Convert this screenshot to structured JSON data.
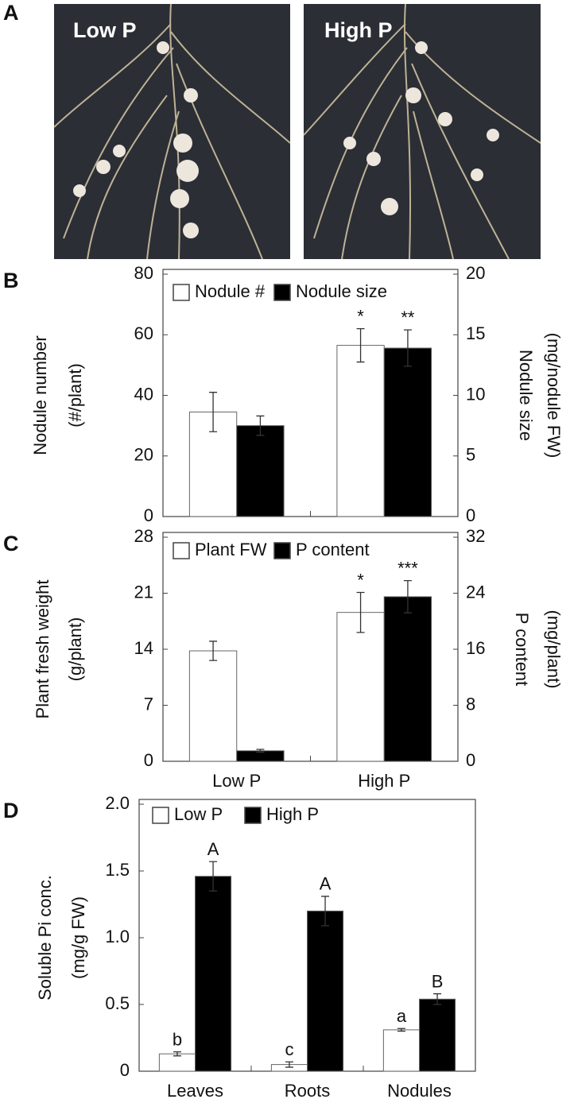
{
  "photo_panel": {
    "panel": "A",
    "labels": [
      "Low P",
      "High P"
    ]
  },
  "chart_data": [
    {
      "type": "bar",
      "panel": "B",
      "ylabel": [
        "Nodule number",
        "(#/plant)"
      ],
      "y2label": [
        "Nodule size",
        "(mg/nodule FW)"
      ],
      "categories": [
        null,
        null
      ],
      "series": [
        {
          "name": "Nodule #",
          "color": "#ffffff",
          "values": [
            34.5,
            56.5
          ],
          "errors": [
            6.5,
            5.5
          ],
          "annotations": [
            null,
            "*"
          ]
        },
        {
          "name": "Nodule size",
          "color": "#000000",
          "axis": "y2",
          "values": [
            7.5,
            13.9
          ],
          "errors": [
            0.8,
            1.5
          ],
          "annotations": [
            null,
            "**"
          ]
        }
      ],
      "ylim": [
        0,
        80
      ],
      "yticks": [
        0,
        20,
        40,
        60,
        80
      ],
      "y2lim": [
        0,
        20
      ],
      "y2ticks": [
        0,
        5,
        10,
        15,
        20
      ],
      "legend": "top-left",
      "grid": false
    },
    {
      "type": "bar",
      "panel": "C",
      "ylabel": [
        "Plant fresh weight",
        "(g/plant)"
      ],
      "y2label": [
        "P content",
        "(mg/plant)"
      ],
      "categories": [
        "Low P",
        "High P"
      ],
      "series": [
        {
          "name": "Plant FW",
          "color": "#ffffff",
          "values": [
            13.8,
            18.6
          ],
          "errors": [
            1.2,
            2.5
          ],
          "annotations": [
            null,
            "*"
          ]
        },
        {
          "name": "P content",
          "color": "#000000",
          "axis": "y2",
          "values": [
            1.5,
            23.5
          ],
          "errors": [
            0.2,
            2.3
          ],
          "annotations": [
            null,
            "***"
          ]
        }
      ],
      "ylim": [
        0,
        28
      ],
      "yticks": [
        0,
        7,
        14,
        21,
        28
      ],
      "y2lim": [
        0,
        32
      ],
      "y2ticks": [
        0,
        8,
        16,
        24,
        32
      ],
      "legend": "top-left",
      "grid": false
    },
    {
      "type": "bar",
      "panel": "D",
      "ylabel": [
        "Soluble Pi conc.",
        "(mg/g  FW)"
      ],
      "categories": [
        "Leaves",
        "Roots",
        "Nodules"
      ],
      "series": [
        {
          "name": "Low P",
          "color": "#ffffff",
          "values": [
            0.13,
            0.05,
            0.31
          ],
          "errors": [
            0.015,
            0.02,
            0.01
          ],
          "annotations": [
            "b",
            "c",
            "a"
          ]
        },
        {
          "name": "High P",
          "color": "#000000",
          "values": [
            1.46,
            1.2,
            0.54
          ],
          "errors": [
            0.11,
            0.11,
            0.04
          ],
          "annotations": [
            "A",
            "A",
            "B"
          ]
        }
      ],
      "ylim": [
        0,
        2
      ],
      "yticks": [
        0,
        0.5,
        {
          "value": 1,
          "label": "1.0"
        },
        1.5,
        {
          "value": 2,
          "label": "2.0"
        }
      ],
      "legend": "top-left",
      "grid": false
    }
  ]
}
